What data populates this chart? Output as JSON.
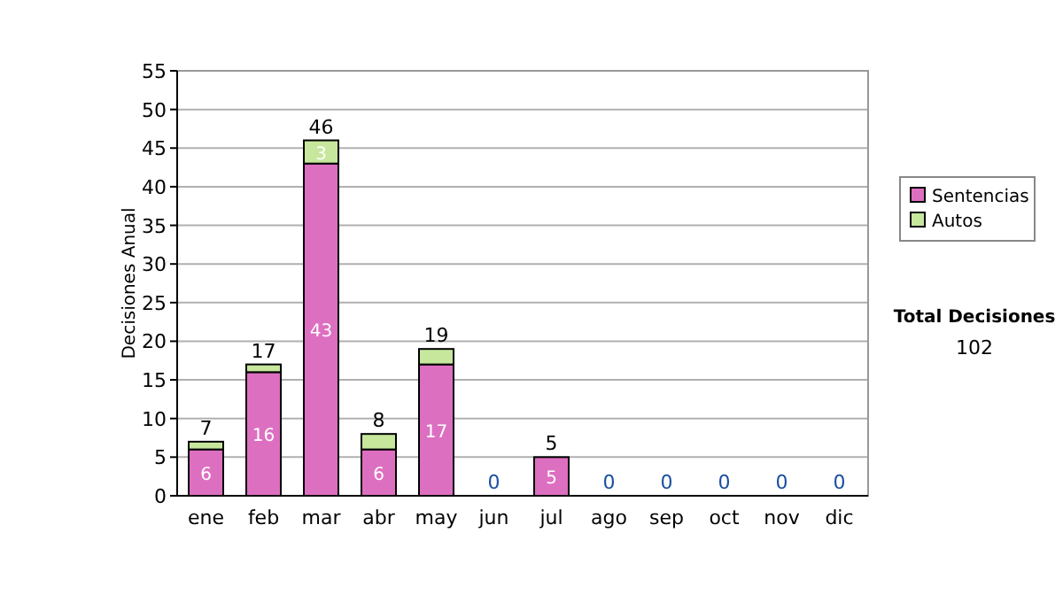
{
  "chart_data": {
    "type": "bar",
    "stacked": true,
    "ylabel": "Decisiones Anual",
    "categories": [
      "ene",
      "feb",
      "mar",
      "abr",
      "may",
      "jun",
      "jul",
      "ago",
      "sep",
      "oct",
      "nov",
      "dic"
    ],
    "series": [
      {
        "name": "Sentencias",
        "color": "#dd6fc0",
        "values": [
          6,
          16,
          43,
          6,
          17,
          0,
          5,
          0,
          0,
          0,
          0,
          0
        ],
        "value_labels": [
          "6",
          "16",
          "43",
          "6",
          "17",
          null,
          "5",
          null,
          null,
          null,
          null,
          null
        ]
      },
      {
        "name": "Autos",
        "color": "#c6e79c",
        "values": [
          1,
          1,
          3,
          2,
          2,
          0,
          0,
          0,
          0,
          0,
          0,
          0
        ],
        "value_labels": [
          null,
          null,
          "3",
          null,
          null,
          null,
          null,
          null,
          null,
          null,
          null,
          null
        ]
      }
    ],
    "totals": [
      "7",
      "17",
      "46",
      "8",
      "19",
      "0",
      "5",
      "0",
      "0",
      "0",
      "0",
      "0"
    ],
    "ylim": [
      0,
      55
    ],
    "yticks": [
      0,
      5,
      10,
      15,
      20,
      25,
      30,
      35,
      40,
      45,
      50,
      55
    ],
    "grid": "y",
    "legend": "right",
    "annotations": [
      "Total Decisiones",
      "102"
    ]
  }
}
